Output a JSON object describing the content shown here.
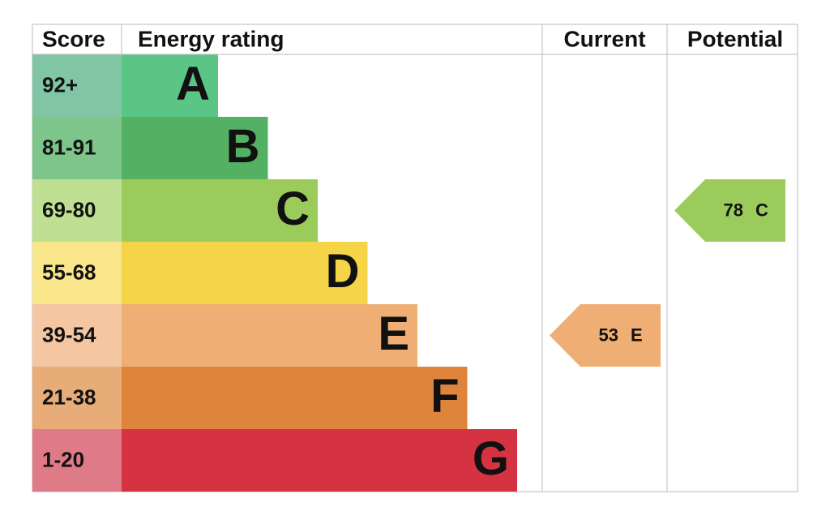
{
  "header": {
    "score": "Score",
    "rating": "Energy rating",
    "current": "Current",
    "potential": "Potential"
  },
  "bands": [
    {
      "score": "92+",
      "letter": "A",
      "color": "#5bc586",
      "score_color": "#80c6a5"
    },
    {
      "score": "81-91",
      "letter": "B",
      "color": "#54b163",
      "score_color": "#7ec58b"
    },
    {
      "score": "69-80",
      "letter": "C",
      "color": "#9bcc5b",
      "score_color": "#bfdf92"
    },
    {
      "score": "55-68",
      "letter": "D",
      "color": "#f5d547",
      "score_color": "#f9e68a"
    },
    {
      "score": "39-54",
      "letter": "E",
      "color": "#efae74",
      "score_color": "#f4c6a1"
    },
    {
      "score": "21-38",
      "letter": "F",
      "color": "#df853b",
      "score_color": "#e8ac79"
    },
    {
      "score": "1-20",
      "letter": "G",
      "color": "#d53341",
      "score_color": "#df7a87"
    }
  ],
  "current": {
    "value": 53,
    "letter": "E"
  },
  "potential": {
    "value": 78,
    "letter": "C"
  }
}
